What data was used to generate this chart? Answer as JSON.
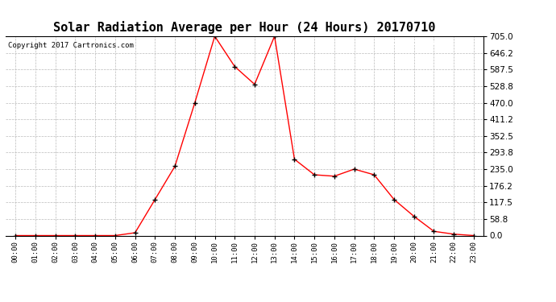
{
  "title": "Solar Radiation Average per Hour (24 Hours) 20170710",
  "copyright": "Copyright 2017 Cartronics.com",
  "hours": [
    0,
    1,
    2,
    3,
    4,
    5,
    6,
    7,
    8,
    9,
    10,
    11,
    12,
    13,
    14,
    15,
    16,
    17,
    18,
    19,
    20,
    21,
    22,
    23
  ],
  "values": [
    0.0,
    0.0,
    0.0,
    0.0,
    0.0,
    0.0,
    10.0,
    127.5,
    245.0,
    470.0,
    705.0,
    598.0,
    535.0,
    705.0,
    270.0,
    215.0,
    210.0,
    235.0,
    215.0,
    127.5,
    68.0,
    15.0,
    5.0,
    0.0
  ],
  "ylim": [
    0.0,
    705.0
  ],
  "yticks": [
    0.0,
    58.8,
    117.5,
    176.2,
    235.0,
    293.8,
    352.5,
    411.2,
    470.0,
    528.8,
    587.5,
    646.2,
    705.0
  ],
  "line_color": "red",
  "marker_color": "black",
  "background_color": "#ffffff",
  "grid_color": "#bbbbbb",
  "title_fontsize": 11,
  "legend_bg": "#cc0000",
  "legend_fg": "#ffffff"
}
